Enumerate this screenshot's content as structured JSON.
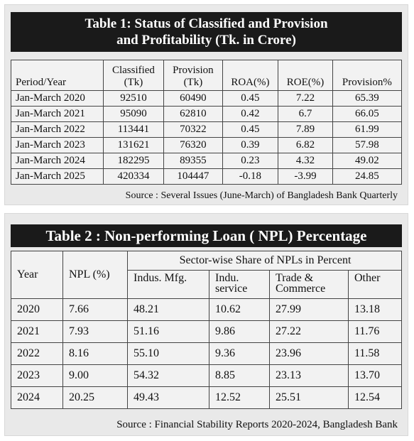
{
  "table1": {
    "title_line1": "Table 1: Status of Classified and Provision",
    "title_line2": "and Profitability (Tk. in Crore)",
    "headers": {
      "period": "Period/Year",
      "classified": [
        "Classified",
        "(Tk)"
      ],
      "provision": [
        "Provision",
        "(Tk)"
      ],
      "roa": "ROA(%)",
      "roe": "ROE(%)",
      "provision_pct": "Provision%"
    },
    "rows": [
      {
        "period": "Jan-March 2020",
        "classified": "92510",
        "provision": "60490",
        "roa": "0.45",
        "roe": "7.22",
        "provision_pct": "65.39"
      },
      {
        "period": "Jan-March 2021",
        "classified": "95090",
        "provision": "62810",
        "roa": "0.42",
        "roe": "6.7",
        "provision_pct": "66.05"
      },
      {
        "period": "Jan-March 2022",
        "classified": "113441",
        "provision": "70322",
        "roa": "0.45",
        "roe": "7.89",
        "provision_pct": "61.99"
      },
      {
        "period": "Jan-March 2023",
        "classified": "131621",
        "provision": "76320",
        "roa": "0.39",
        "roe": "6.82",
        "provision_pct": "57.98"
      },
      {
        "period": "Jan-March 2024",
        "classified": "182295",
        "provision": "89355",
        "roa": "0.23",
        "roe": "4.32",
        "provision_pct": "49.02"
      },
      {
        "period": "Jan-March 2025",
        "classified": "420334",
        "provision": "104447",
        "roa": "-0.18",
        "roe": "-3.99",
        "provision_pct": "24.85"
      }
    ],
    "source": "Source : Several Issues (June-March) of Bangladesh Bank Quarterly"
  },
  "table2": {
    "title": "Table 2 : Non-performing Loan ( NPL) Percentage",
    "headers": {
      "year": "Year",
      "npl": "NPL (%)",
      "sector_span": "Sector-wise Share of NPLs in Percent",
      "indus_mfg": "Indus. Mfg.",
      "indu_service": [
        "Indu.",
        "service"
      ],
      "trade_commerce": [
        "Trade &",
        "Commerce"
      ],
      "other": "Other"
    },
    "rows": [
      {
        "year": "2020",
        "npl": "7.66",
        "indus_mfg": "48.21",
        "indu_service": "10.62",
        "trade_commerce": "27.99",
        "other": "13.18"
      },
      {
        "year": "2021",
        "npl": "7.93",
        "indus_mfg": "51.16",
        "indu_service": "9.86",
        "trade_commerce": "27.22",
        "other": "11.76"
      },
      {
        "year": "2022",
        "npl": "8.16",
        "indus_mfg": "55.10",
        "indu_service": "9.36",
        "trade_commerce": "23.96",
        "other": "11.58"
      },
      {
        "year": "2023",
        "npl": "9.00",
        "indus_mfg": "54.32",
        "indu_service": "8.85",
        "trade_commerce": "23.13",
        "other": "13.70"
      },
      {
        "year": "2024",
        "npl": "20.25",
        "indus_mfg": "49.43",
        "indu_service": "12.52",
        "trade_commerce": "25.51",
        "other": "12.54"
      }
    ],
    "source": "Source : Financial Stability Reports 2020-2024, Bangladesh Bank"
  }
}
